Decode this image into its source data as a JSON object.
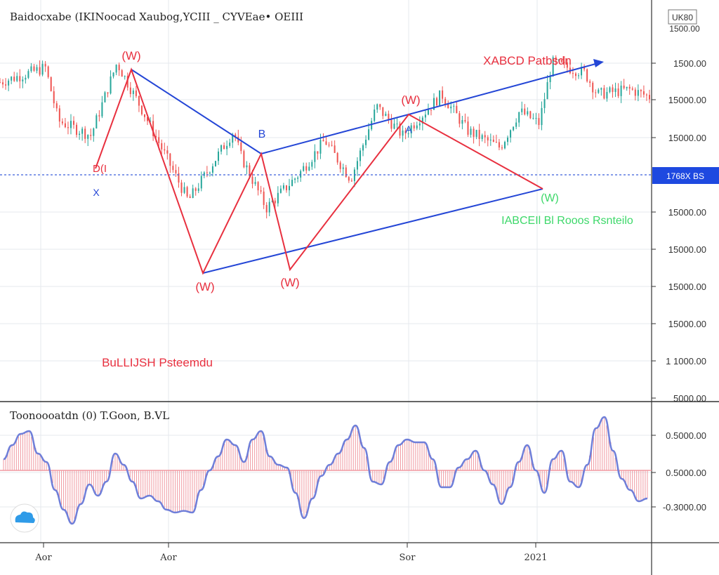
{
  "header": {
    "title": "Baidocxabe (IKINoocad Xaubog,YCIII _ CYVEae• OEIII"
  },
  "colors": {
    "up_candle": "#26a69a",
    "down_candle": "#ef5350",
    "pattern_red": "#e8303f",
    "pattern_blue": "#2446d6",
    "bullish_text": "#e8303f",
    "bearish_text": "#3dd86a",
    "oscillator_line": "#6f7fd9",
    "oscillator_fill": "#f09aa2",
    "current_price_line": "#3b5fd9",
    "price_tag_bg": "#1e49e0",
    "grid": "#e6e8ee",
    "axis_line": "#333333",
    "logo": "#2f9be8"
  },
  "chart_data": [
    {
      "type": "candlestick",
      "title": "Baidocxabe (IKINoocad Xaubog,YCIII _ CYVEae• OEIII",
      "y_tick_labels": [
        "1500.00",
        "15000.00",
        "15000.00",
        "1 5000.00",
        "15000.00",
        "15000.00",
        "15000.00",
        "15000.00",
        "1 1000.00",
        "5000.00"
      ],
      "axis_corner_label": "UK80\n1500.00",
      "current_price_label": "1768X BS",
      "approximate_close_path": [
        [
          "0",
          0.82
        ],
        [
          "0.07",
          0.88
        ],
        [
          "0.09",
          0.66
        ],
        [
          "0.14",
          0.6
        ],
        [
          "0.18",
          0.9
        ],
        [
          "0.22",
          0.7
        ],
        [
          "0.29",
          0.33
        ],
        [
          "0.36",
          0.62
        ],
        [
          "0.37",
          0.52
        ],
        [
          "0.41",
          0.3
        ],
        [
          "0.46",
          0.44
        ],
        [
          "0.5",
          0.58
        ],
        [
          "0.54",
          0.42
        ],
        [
          "0.58",
          0.72
        ],
        [
          "0.62",
          0.6
        ],
        [
          "0.68",
          0.77
        ],
        [
          "0.72",
          0.62
        ],
        [
          "0.77",
          0.55
        ],
        [
          "0.8",
          0.7
        ],
        [
          "0.83",
          0.65
        ],
        [
          "0.85",
          0.9
        ],
        [
          "0.9",
          0.86
        ],
        [
          "0.92",
          0.77
        ],
        [
          "0.97",
          0.79
        ],
        [
          "1",
          0.76
        ]
      ],
      "pattern_points": [
        {
          "name": "X",
          "label": "X",
          "x": 0.15,
          "y": 0.61
        },
        {
          "name": "A",
          "label": "(W)",
          "x": 0.2,
          "y": 0.87
        },
        {
          "name": "B",
          "label": "B",
          "x": 0.4,
          "y": 0.52
        },
        {
          "name": "C",
          "label": "(W)",
          "x": 0.31,
          "y": 0.27
        },
        {
          "name": "D",
          "label": "(W)",
          "x": 0.44,
          "y": 0.28
        },
        {
          "name": "E",
          "label": "(W)",
          "x": 0.63,
          "y": 0.72
        },
        {
          "name": "F",
          "label": "A",
          "x": 0.63,
          "y": 0.65
        },
        {
          "name": "G",
          "label": "(W)",
          "x": 0.84,
          "y": 0.51
        }
      ],
      "annotations": {
        "xabcd": "XABCD Patbsdn",
        "bearish": "IABCEIl Bl Rooos Rsnteilo",
        "bullish": "BuLLIJSH Psteemdu"
      },
      "markers": {
        "x_point": "X",
        "a_peak": "(W)",
        "b_point": "B",
        "w_low_1": "(W)",
        "w_low_2": "(W)",
        "w_mid": "(W)",
        "a_small": "A",
        "end_point": "(W)",
        "flag": "D(I"
      }
    },
    {
      "type": "area",
      "title": "Toonoooatdn (0) T.Goon, B.VL",
      "y_tick_labels": [
        "0.5000.00",
        "0.5000.00",
        "-0.3000.00"
      ],
      "x_tick_labels": [
        "Aor",
        "Aor",
        "Sor",
        "2021"
      ],
      "baseline": 0,
      "values": [
        0.2,
        0.45,
        0.65,
        0.7,
        0.3,
        0.15,
        -0.35,
        -0.7,
        -0.95,
        -0.6,
        -0.25,
        -0.45,
        -0.2,
        0.3,
        0.1,
        -0.2,
        -0.5,
        -0.45,
        -0.55,
        -0.7,
        -0.75,
        -0.72,
        -0.75,
        -0.35,
        0.0,
        0.25,
        0.55,
        0.45,
        0.15,
        0.55,
        0.7,
        0.25,
        0.1,
        0.05,
        -0.4,
        -0.85,
        -0.5,
        -0.1,
        0.1,
        0.3,
        0.55,
        0.8,
        0.4,
        -0.2,
        -0.25,
        0.15,
        0.45,
        0.55,
        0.5,
        0.5,
        0.2,
        -0.3,
        -0.3,
        0.05,
        0.2,
        0.35,
        0.0,
        -0.25,
        -0.6,
        -0.3,
        0.15,
        0.45,
        0.0,
        -0.4,
        0.2,
        0.35,
        -0.2,
        -0.3,
        0.1,
        0.75,
        0.95,
        0.35,
        -0.15,
        -0.35,
        -0.55,
        -0.5
      ]
    }
  ]
}
